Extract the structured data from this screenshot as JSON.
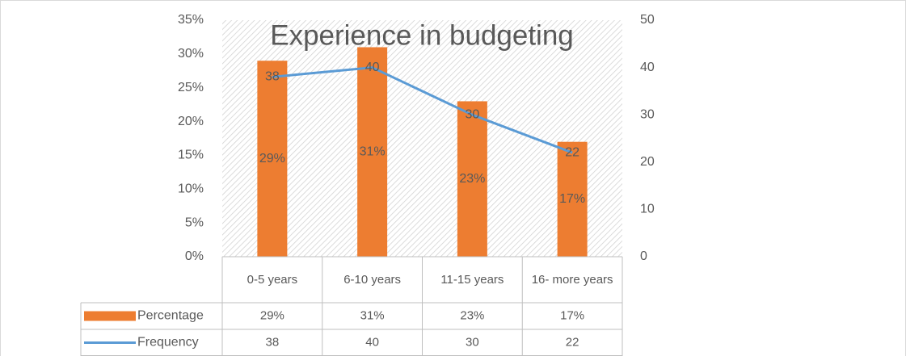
{
  "chart_data": {
    "type": "bar",
    "title": "Experience in budgeting",
    "categories": [
      "0-5 years",
      "6-10 years",
      "11-15 years",
      "16- more years"
    ],
    "series": [
      {
        "name": "Percentage",
        "type": "bar",
        "color": "#ed7d31",
        "values": [
          29,
          31,
          23,
          17
        ],
        "value_labels": [
          "29%",
          "31%",
          "23%",
          "17%"
        ]
      },
      {
        "name": "Frequency",
        "type": "line",
        "axis": "y2",
        "color": "#5b9bd5",
        "values": [
          38,
          40,
          30,
          22
        ]
      }
    ],
    "ylim": [
      0,
      35
    ],
    "yticks": [
      {
        "value": 0,
        "label": "0%"
      },
      {
        "value": 5,
        "label": "5%"
      },
      {
        "value": 10,
        "label": "10%"
      },
      {
        "value": 15,
        "label": "15%"
      },
      {
        "value": 20,
        "label": "20%"
      },
      {
        "value": 25,
        "label": "25%"
      },
      {
        "value": 30,
        "label": "30%"
      },
      {
        "value": 35,
        "label": "35%"
      }
    ],
    "y2lim": [
      0,
      50
    ],
    "y2ticks": [
      0,
      10,
      20,
      30,
      40,
      50
    ],
    "data_table": true
  }
}
